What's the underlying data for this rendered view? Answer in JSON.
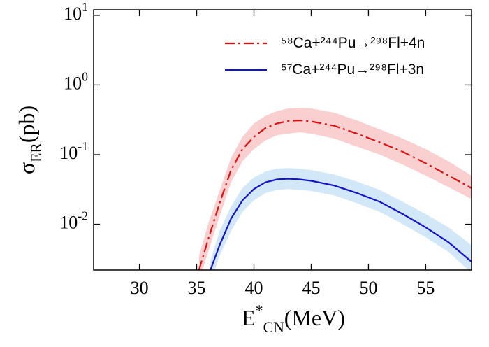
{
  "chart_data": {
    "type": "line",
    "xlabel": "E^{*}_{CN}(MeV)",
    "ylabel": "σ_{ER}(pb)",
    "xlim": [
      26,
      59
    ],
    "xticks": [
      30,
      35,
      40,
      45,
      50,
      55
    ],
    "ylim": [
      0.0022,
      12
    ],
    "yticks": [
      {
        "value": 0.01,
        "label": "10^{-2}"
      },
      {
        "value": 0.1,
        "label": "10^{-1}"
      },
      {
        "value": 1,
        "label": "10^{0}"
      },
      {
        "value": 10,
        "label": "10^{1}"
      }
    ],
    "log_y": true,
    "legend": "upper right",
    "series": [
      {
        "name": "⁵⁸Ca+²⁴⁴Pu→²⁹⁸Fl+4n",
        "color": "#e01010",
        "band_color": "#f9cfcf",
        "style": "dash-dot",
        "x": [
          35.2,
          36,
          37,
          38,
          39,
          40,
          41,
          42,
          43,
          44,
          45,
          47,
          49,
          51,
          53,
          55,
          57,
          59
        ],
        "values": [
          0.0022,
          0.006,
          0.02,
          0.06,
          0.12,
          0.18,
          0.24,
          0.28,
          0.305,
          0.31,
          0.3,
          0.26,
          0.2,
          0.15,
          0.11,
          0.075,
          0.05,
          0.033
        ],
        "upper": [
          0.0035,
          0.01,
          0.03,
          0.09,
          0.18,
          0.28,
          0.36,
          0.42,
          0.46,
          0.47,
          0.46,
          0.4,
          0.31,
          0.23,
          0.17,
          0.12,
          0.08,
          0.05
        ],
        "lower": [
          0.0015,
          0.004,
          0.013,
          0.04,
          0.08,
          0.12,
          0.16,
          0.19,
          0.2,
          0.21,
          0.2,
          0.17,
          0.13,
          0.1,
          0.072,
          0.05,
          0.034,
          0.023
        ]
      },
      {
        "name": "⁵⁷Ca+²⁴⁴Pu→²⁹⁸Fl+3n",
        "color": "#1414c8",
        "band_color": "#d2e8f8",
        "style": "solid",
        "x": [
          36.2,
          37,
          38,
          39,
          40,
          41,
          42,
          43,
          44,
          45,
          47,
          49,
          51,
          53,
          55,
          57,
          59
        ],
        "values": [
          0.0022,
          0.005,
          0.012,
          0.022,
          0.032,
          0.04,
          0.044,
          0.045,
          0.044,
          0.042,
          0.036,
          0.028,
          0.021,
          0.014,
          0.009,
          0.0055,
          0.0029
        ],
        "upper": [
          0.003,
          0.008,
          0.018,
          0.033,
          0.047,
          0.057,
          0.063,
          0.064,
          0.063,
          0.06,
          0.052,
          0.041,
          0.031,
          0.021,
          0.014,
          0.009,
          0.005
        ],
        "lower": [
          0.0015,
          0.0035,
          0.008,
          0.015,
          0.022,
          0.028,
          0.031,
          0.032,
          0.031,
          0.03,
          0.026,
          0.02,
          0.015,
          0.01,
          0.0065,
          0.004,
          0.002
        ]
      }
    ]
  }
}
